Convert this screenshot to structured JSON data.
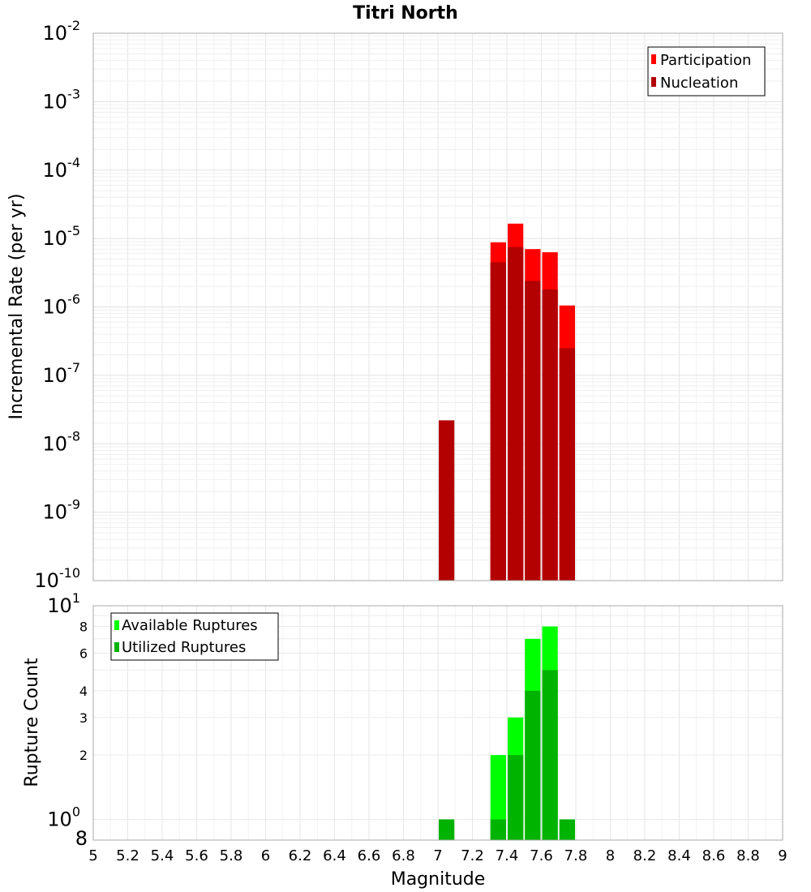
{
  "chart_data": [
    {
      "type": "bar",
      "title": "Titri North",
      "xlabel": "Magnitude",
      "ylabel": "Incremental Rate (per yr)",
      "yscale": "log",
      "xlim": [
        5,
        9
      ],
      "ylim": [
        1e-10,
        0.01
      ],
      "bar_width": 0.1,
      "legend_position": "top-right",
      "y_ticks": [
        {
          "base": "10",
          "exp": "-10",
          "value": 1e-10
        },
        {
          "base": "10",
          "exp": "-9",
          "value": 1e-09
        },
        {
          "base": "10",
          "exp": "-8",
          "value": 1e-08
        },
        {
          "base": "10",
          "exp": "-7",
          "value": 1e-07
        },
        {
          "base": "10",
          "exp": "-6",
          "value": 1e-06
        },
        {
          "base": "10",
          "exp": "-5",
          "value": 1e-05
        },
        {
          "base": "10",
          "exp": "-4",
          "value": 0.0001
        },
        {
          "base": "10",
          "exp": "-3",
          "value": 0.001
        },
        {
          "base": "10",
          "exp": "-2",
          "value": 0.01
        }
      ],
      "series": [
        {
          "name": "Participation",
          "color": "#ff0000",
          "x": [
            7.35,
            7.45,
            7.55,
            7.65,
            7.75
          ],
          "values": [
            8.8e-06,
            1.65e-05,
            7e-06,
            6.3e-06,
            1.05e-06
          ]
        },
        {
          "name": "Nucleation",
          "color": "#b30000",
          "x": [
            7.05,
            7.35,
            7.45,
            7.55,
            7.65,
            7.75
          ],
          "values": [
            2.2e-08,
            4.5e-06,
            7.5e-06,
            2.4e-06,
            1.8e-06,
            2.5e-07
          ]
        }
      ]
    },
    {
      "type": "bar",
      "xlabel": "Magnitude",
      "ylabel": "Rupture Count",
      "yscale": "log",
      "xlim": [
        5,
        9
      ],
      "ylim": [
        0.8,
        10
      ],
      "bar_width": 0.1,
      "legend_position": "top-left",
      "y_major_ticks": [
        {
          "base": "10",
          "exp": "0",
          "value": 1
        },
        {
          "base": "10",
          "exp": "1",
          "value": 10
        }
      ],
      "y_minor_ticks": [
        {
          "label": "8",
          "value": 0.8
        },
        {
          "label": "2",
          "value": 2
        },
        {
          "label": "3",
          "value": 3
        },
        {
          "label": "4",
          "value": 4
        },
        {
          "label": "6",
          "value": 6
        },
        {
          "label": "8",
          "value": 8
        }
      ],
      "x_ticks": [
        "5",
        "5.2",
        "5.4",
        "5.6",
        "5.8",
        "6",
        "6.2",
        "6.4",
        "6.6",
        "6.8",
        "7",
        "7.2",
        "7.4",
        "7.6",
        "7.8",
        "8",
        "8.2",
        "8.4",
        "8.6",
        "8.8",
        "9"
      ],
      "series": [
        {
          "name": "Available Ruptures",
          "color": "#00ff00",
          "x": [
            7.35,
            7.45,
            7.55,
            7.65
          ],
          "values": [
            2,
            3,
            7,
            8
          ]
        },
        {
          "name": "Utilized Ruptures",
          "color": "#00b300",
          "x": [
            7.05,
            7.35,
            7.45,
            7.55,
            7.65,
            7.75
          ],
          "values": [
            1,
            1,
            2,
            4,
            5,
            1
          ]
        }
      ]
    }
  ]
}
